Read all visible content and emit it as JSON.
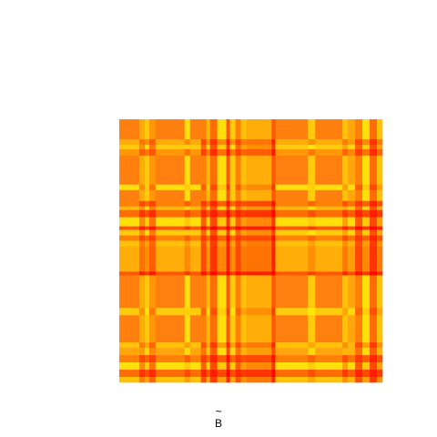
{
  "chart_data": {
    "type": "heatmap",
    "title": "",
    "xlabel": "B",
    "xlabel_accent": "~",
    "ylabel": "",
    "n": 290,
    "colormap": "hot",
    "colors": {
      "red": "#ff0000",
      "orange": "#ff7f0f",
      "yellow": "#ffe60a",
      "light": "#ffea3c"
    },
    "grid": false,
    "legend": "none",
    "band_levels": [
      {
        "from": 0,
        "to": 22,
        "level": 0.35
      },
      {
        "from": 22,
        "to": 28,
        "level": 0.75
      },
      {
        "from": 28,
        "to": 33,
        "level": 0.55
      },
      {
        "from": 33,
        "to": 40,
        "level": 0.8
      },
      {
        "from": 40,
        "to": 72,
        "level": 0.35
      },
      {
        "from": 72,
        "to": 78,
        "level": 0.6
      },
      {
        "from": 78,
        "to": 90,
        "level": 0.35
      },
      {
        "from": 90,
        "to": 96,
        "level": 0.85
      },
      {
        "from": 96,
        "to": 100,
        "level": 0.5
      },
      {
        "from": 100,
        "to": 108,
        "level": 0.9
      },
      {
        "from": 108,
        "to": 118,
        "level": 0.6
      },
      {
        "from": 118,
        "to": 122,
        "level": 0.95
      },
      {
        "from": 122,
        "to": 128,
        "level": 0.55
      },
      {
        "from": 128,
        "to": 134,
        "level": 0.85
      },
      {
        "from": 134,
        "to": 140,
        "level": 0.7
      },
      {
        "from": 140,
        "to": 168,
        "level": 0.75
      },
      {
        "from": 168,
        "to": 172,
        "level": 0.95
      },
      {
        "from": 172,
        "to": 208,
        "level": 0.35
      },
      {
        "from": 208,
        "to": 216,
        "level": 0.55
      },
      {
        "from": 216,
        "to": 246,
        "level": 0.35
      },
      {
        "from": 246,
        "to": 252,
        "level": 0.7
      },
      {
        "from": 252,
        "to": 260,
        "level": 0.45
      },
      {
        "from": 260,
        "to": 268,
        "level": 0.85
      },
      {
        "from": 268,
        "to": 276,
        "level": 0.6
      },
      {
        "from": 276,
        "to": 284,
        "level": 0.9
      },
      {
        "from": 284,
        "to": 290,
        "level": 0.7
      }
    ]
  }
}
